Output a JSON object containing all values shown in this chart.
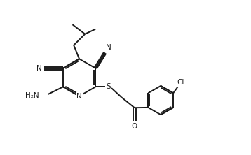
{
  "bg_color": "#ffffff",
  "line_color": "#1a1a1a",
  "line_width": 1.4,
  "font_size": 7.5,
  "figsize": [
    3.58,
    2.22
  ],
  "dpi": 100,
  "xlim": [
    0,
    10
  ],
  "ylim": [
    0,
    6.2
  ]
}
